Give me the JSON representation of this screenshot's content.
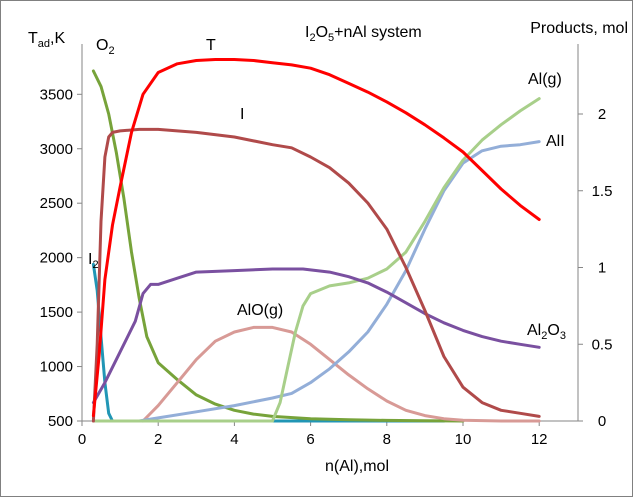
{
  "chart_data": {
    "type": "line",
    "title": "I2O5+nAl system",
    "title_parts": {
      "a": "I",
      "a_sub": "2",
      "b": "O",
      "b_sub": "5",
      "c": "+nAl system"
    },
    "xlabel": "n(Al),mol",
    "ylabel": "Tad,K",
    "ylabel_parts": {
      "main": "T",
      "sub": "ad",
      "rest": ",K"
    },
    "y2label": "Products, mol",
    "xlim": [
      0,
      13
    ],
    "ylim": [
      500,
      3800
    ],
    "y2lim": [
      0,
      2.3
    ],
    "xticks": [
      "0",
      "2",
      "4",
      "6",
      "8",
      "10",
      "12"
    ],
    "yticks": [
      "500",
      "1000",
      "1500",
      "2000",
      "2500",
      "3000",
      "3500"
    ],
    "y2ticks": [
      "0",
      "0.5",
      "1",
      "1.5",
      "2"
    ],
    "grid": false,
    "legend": "none (series labelled directly on the chart)",
    "series": [
      {
        "name": "T",
        "axis": "left",
        "color": "#ff0000",
        "points": [
          [
            0.3,
            550
          ],
          [
            0.45,
            1100
          ],
          [
            0.6,
            1800
          ],
          [
            0.8,
            2300
          ],
          [
            1.0,
            2650
          ],
          [
            1.3,
            3150
          ],
          [
            1.6,
            3500
          ],
          [
            2.0,
            3700
          ],
          [
            2.5,
            3780
          ],
          [
            3.0,
            3810
          ],
          [
            3.5,
            3820
          ],
          [
            4.0,
            3820
          ],
          [
            4.5,
            3810
          ],
          [
            5.0,
            3790
          ],
          [
            5.5,
            3770
          ],
          [
            6.0,
            3740
          ],
          [
            6.5,
            3680
          ],
          [
            7.0,
            3600
          ],
          [
            7.5,
            3520
          ],
          [
            8.0,
            3430
          ],
          [
            8.5,
            3330
          ],
          [
            9.0,
            3220
          ],
          [
            9.5,
            3100
          ],
          [
            10.0,
            2970
          ],
          [
            10.5,
            2800
          ],
          [
            11.0,
            2630
          ],
          [
            11.5,
            2480
          ],
          [
            12.0,
            2350
          ]
        ]
      },
      {
        "name": "I",
        "axis": "right",
        "color": "#b04a4a",
        "points": [
          [
            0.3,
            0.0
          ],
          [
            0.4,
            0.5
          ],
          [
            0.5,
            1.3
          ],
          [
            0.6,
            1.72
          ],
          [
            0.7,
            1.85
          ],
          [
            0.8,
            1.88
          ],
          [
            1.0,
            1.89
          ],
          [
            1.5,
            1.9
          ],
          [
            2.0,
            1.9
          ],
          [
            3.0,
            1.88
          ],
          [
            4.0,
            1.85
          ],
          [
            5.0,
            1.8
          ],
          [
            5.5,
            1.78
          ],
          [
            6.0,
            1.72
          ],
          [
            6.5,
            1.65
          ],
          [
            7.0,
            1.55
          ],
          [
            7.5,
            1.42
          ],
          [
            8.0,
            1.25
          ],
          [
            8.5,
            1.0
          ],
          [
            9.0,
            0.72
          ],
          [
            9.5,
            0.42
          ],
          [
            10.0,
            0.22
          ],
          [
            10.5,
            0.12
          ],
          [
            11.0,
            0.07
          ],
          [
            11.5,
            0.05
          ],
          [
            12.0,
            0.03
          ]
        ]
      },
      {
        "name": "O2",
        "axis": "right",
        "color": "#77a33a",
        "points": [
          [
            0.3,
            2.28
          ],
          [
            0.5,
            2.18
          ],
          [
            0.7,
            2.0
          ],
          [
            0.9,
            1.75
          ],
          [
            1.1,
            1.45
          ],
          [
            1.3,
            1.1
          ],
          [
            1.5,
            0.8
          ],
          [
            1.7,
            0.55
          ],
          [
            2.0,
            0.38
          ],
          [
            2.5,
            0.27
          ],
          [
            3.0,
            0.17
          ],
          [
            3.5,
            0.11
          ],
          [
            4.0,
            0.07
          ],
          [
            4.5,
            0.045
          ],
          [
            5.0,
            0.03
          ],
          [
            6.0,
            0.015
          ],
          [
            7.0,
            0.008
          ],
          [
            8.0,
            0.004
          ],
          [
            9.0,
            0.002
          ],
          [
            10.0,
            0.0
          ]
        ]
      },
      {
        "name": "I2",
        "axis": "right",
        "color": "#2196b5",
        "points": [
          [
            0.3,
            1.02
          ],
          [
            0.4,
            0.85
          ],
          [
            0.5,
            0.55
          ],
          [
            0.6,
            0.25
          ],
          [
            0.7,
            0.05
          ],
          [
            0.8,
            0.0
          ],
          [
            9.5,
            0.0
          ]
        ]
      },
      {
        "name": "Al2O3",
        "axis": "right",
        "color": "#7a50a0",
        "points": [
          [
            0.3,
            0.12
          ],
          [
            0.6,
            0.25
          ],
          [
            1.0,
            0.45
          ],
          [
            1.4,
            0.65
          ],
          [
            1.6,
            0.83
          ],
          [
            1.8,
            0.89
          ],
          [
            2.0,
            0.89
          ],
          [
            2.5,
            0.93
          ],
          [
            3.0,
            0.97
          ],
          [
            4.0,
            0.98
          ],
          [
            5.0,
            0.99
          ],
          [
            5.8,
            0.99
          ],
          [
            6.5,
            0.97
          ],
          [
            7.0,
            0.94
          ],
          [
            7.5,
            0.9
          ],
          [
            8.0,
            0.84
          ],
          [
            8.5,
            0.77
          ],
          [
            9.0,
            0.7
          ],
          [
            9.5,
            0.64
          ],
          [
            10.0,
            0.59
          ],
          [
            10.5,
            0.55
          ],
          [
            11.0,
            0.52
          ],
          [
            11.5,
            0.5
          ],
          [
            12.0,
            0.48
          ]
        ]
      },
      {
        "name": "AlO(g)",
        "axis": "right",
        "color": "#d89a96",
        "points": [
          [
            1.6,
            0.0
          ],
          [
            2.0,
            0.1
          ],
          [
            2.5,
            0.25
          ],
          [
            3.0,
            0.4
          ],
          [
            3.5,
            0.52
          ],
          [
            4.0,
            0.58
          ],
          [
            4.5,
            0.61
          ],
          [
            5.0,
            0.61
          ],
          [
            5.5,
            0.58
          ],
          [
            6.0,
            0.5
          ],
          [
            6.5,
            0.4
          ],
          [
            7.0,
            0.3
          ],
          [
            7.5,
            0.21
          ],
          [
            8.0,
            0.13
          ],
          [
            8.5,
            0.07
          ],
          [
            9.0,
            0.035
          ],
          [
            9.5,
            0.015
          ],
          [
            10.0,
            0.005
          ],
          [
            11.0,
            0.0
          ],
          [
            12.0,
            0.0
          ]
        ]
      },
      {
        "name": "Al(g)",
        "axis": "right",
        "color": "#a8cf8a",
        "points": [
          [
            0.3,
            0.0
          ],
          [
            5.0,
            0.0
          ],
          [
            5.2,
            0.12
          ],
          [
            5.4,
            0.35
          ],
          [
            5.6,
            0.58
          ],
          [
            5.8,
            0.75
          ],
          [
            6.0,
            0.83
          ],
          [
            6.5,
            0.88
          ],
          [
            7.0,
            0.9
          ],
          [
            7.5,
            0.93
          ],
          [
            8.0,
            0.99
          ],
          [
            8.5,
            1.1
          ],
          [
            9.0,
            1.3
          ],
          [
            9.5,
            1.52
          ],
          [
            10.0,
            1.7
          ],
          [
            10.5,
            1.83
          ],
          [
            11.0,
            1.93
          ],
          [
            11.5,
            2.02
          ],
          [
            12.0,
            2.1
          ]
        ]
      },
      {
        "name": "AlI",
        "axis": "right",
        "color": "#93aed8",
        "points": [
          [
            1.5,
            0.0
          ],
          [
            2.0,
            0.02
          ],
          [
            3.0,
            0.06
          ],
          [
            4.0,
            0.1
          ],
          [
            5.0,
            0.15
          ],
          [
            5.5,
            0.18
          ],
          [
            6.0,
            0.25
          ],
          [
            6.5,
            0.34
          ],
          [
            7.0,
            0.45
          ],
          [
            7.5,
            0.58
          ],
          [
            8.0,
            0.76
          ],
          [
            8.5,
            0.98
          ],
          [
            9.0,
            1.25
          ],
          [
            9.5,
            1.5
          ],
          [
            10.0,
            1.68
          ],
          [
            10.5,
            1.76
          ],
          [
            11.0,
            1.79
          ],
          [
            11.5,
            1.8
          ],
          [
            12.0,
            1.82
          ]
        ]
      }
    ],
    "curve_labels": [
      {
        "series": "T",
        "text": "T",
        "sub": "",
        "rest": ""
      },
      {
        "series": "I",
        "text": "I",
        "sub": "",
        "rest": ""
      },
      {
        "series": "O2",
        "text": "O",
        "sub": "2",
        "rest": ""
      },
      {
        "series": "I2",
        "text": "I",
        "sub": "2",
        "rest": ""
      },
      {
        "series": "AlO(g)",
        "text": "AlO(g)",
        "sub": "",
        "rest": ""
      },
      {
        "series": "Al(g)",
        "text": "Al(g)",
        "sub": "",
        "rest": ""
      },
      {
        "series": "AlI",
        "text": "AlI",
        "sub": "",
        "rest": ""
      },
      {
        "series": "Al2O3",
        "text": "Al",
        "sub": "2",
        "rest": "O",
        "sub2": "3"
      }
    ]
  }
}
